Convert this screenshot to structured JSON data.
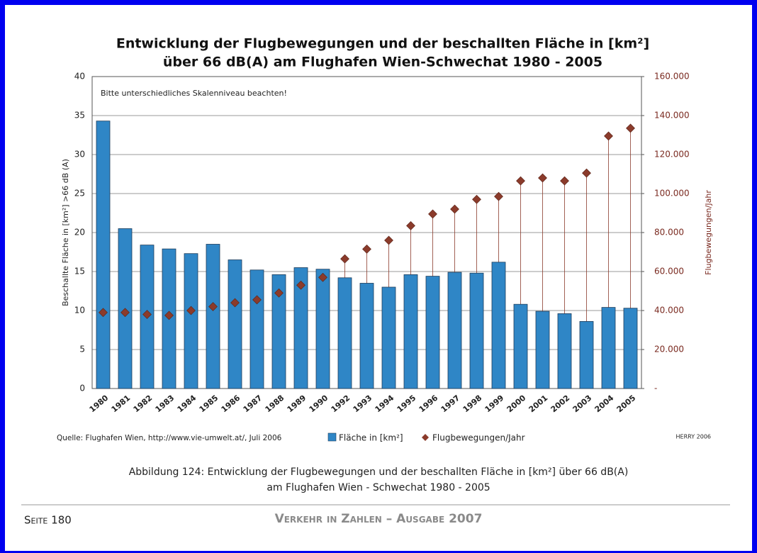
{
  "chart_data": {
    "type": "bar",
    "title": [
      "Entwicklung der Flugbewegungen und der beschallten Fläche in [km²]",
      "über 66 dB(A) am Flughafen Wien-Schwechat 1980 - 2005"
    ],
    "annotation": "Bitte unterschiedliches Skalenniveau beachten!",
    "y_label": "Beschallte Fläche in [km²] >66 dB (A)",
    "y2_label": "Flugbewegungen/Jahr",
    "categories": [
      "1980",
      "1981",
      "1982",
      "1983",
      "1984",
      "1985",
      "1986",
      "1987",
      "1988",
      "1989",
      "1990",
      "1992",
      "1993",
      "1994",
      "1995",
      "1996",
      "1997",
      "1998",
      "1999",
      "2000",
      "2001",
      "2002",
      "2003",
      "2004",
      "2005"
    ],
    "series": [
      {
        "name": "Fläche in [km²]",
        "color": "#2f86c6",
        "values": [
          34.3,
          20.5,
          18.4,
          17.9,
          17.3,
          18.5,
          16.5,
          15.2,
          14.6,
          15.5,
          15.3,
          14.2,
          13.5,
          13.0,
          14.6,
          14.4,
          14.9,
          14.8,
          16.2,
          10.8,
          9.9,
          9.6,
          8.6,
          10.4,
          10.3
        ]
      },
      {
        "name": "Flugbewegungen/Jahr",
        "color": "#8b3b2b",
        "type": "scatter",
        "axis": "y2",
        "dropline": true,
        "values": [
          39000,
          39000,
          38000,
          37500,
          40000,
          42000,
          44000,
          45500,
          49000,
          53000,
          57000,
          66500,
          71500,
          76000,
          83500,
          89500,
          92000,
          97000,
          98500,
          106500,
          108000,
          106500,
          110500,
          129500,
          133500
        ]
      }
    ],
    "ylim": [
      0,
      40
    ],
    "yticks": [
      0,
      5,
      10,
      15,
      20,
      25,
      30,
      35,
      40
    ],
    "y2lim": [
      0,
      160000
    ],
    "y2ticks": [
      {
        "value": 0,
        "label": "-"
      },
      {
        "value": 20000,
        "label": "20.000"
      },
      {
        "value": 40000,
        "label": "40.000"
      },
      {
        "value": 60000,
        "label": "60.000"
      },
      {
        "value": 80000,
        "label": "80.000"
      },
      {
        "value": 100000,
        "label": "100.000"
      },
      {
        "value": 120000,
        "label": "120.000"
      },
      {
        "value": 140000,
        "label": "140.000"
      },
      {
        "value": 160000,
        "label": "160.000"
      }
    ],
    "grid": true,
    "legend": "bottom"
  },
  "source": "Quelle: Flughafen Wien, http://www.vie-umwelt.at/, Juli 2006",
  "credit": "HERRY 2006",
  "caption": [
    "Abbildung 124: Entwicklung der Flugbewegungen und der beschallten Fläche in [km²] über 66 dB(A)",
    "am Flughafen Wien - Schwechat 1980 - 2005"
  ],
  "footer": {
    "page": "Seite 180",
    "publication": "Verkehr in Zahlen – Ausgabe 2007"
  }
}
